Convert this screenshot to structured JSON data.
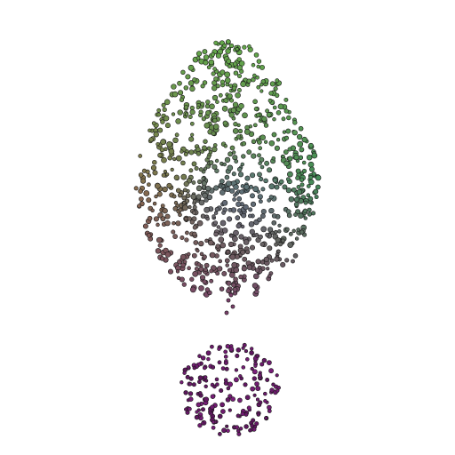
{
  "scene": {
    "background": "#ffffff",
    "object": "3d-point-cloud-render",
    "upper_cluster_colors": {
      "top": "#63a84a",
      "left": "#8a6a4c",
      "right": "#3f8a5a",
      "center": "#5a6f88",
      "bottom": "#7a3f6a"
    },
    "lower_cluster_color": "#6a1a6a",
    "point_outline": "#1a1a1a"
  }
}
